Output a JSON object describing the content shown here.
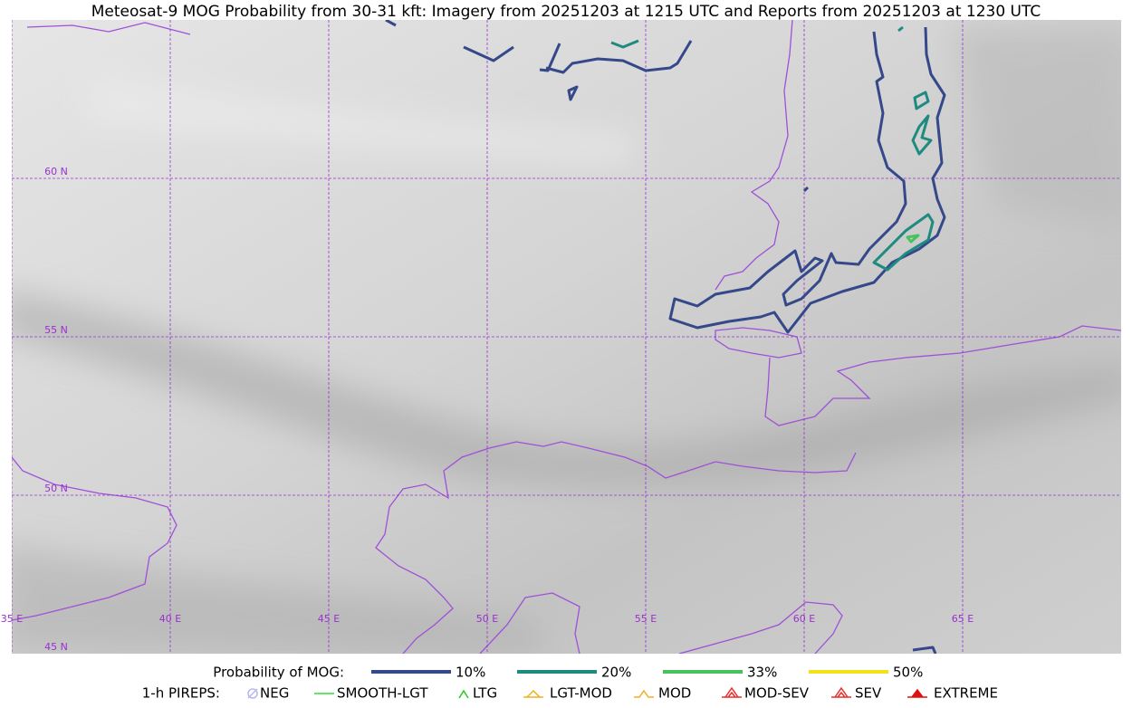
{
  "title": "Meteosat-9 MOG Probability from 30-31 kft: Imagery from 20251203 at 1215 UTC and Reports from 20251203 at 1230 UTC",
  "map": {
    "lon_labels": [
      "35 E",
      "40 E",
      "45 E",
      "50 E",
      "55 E",
      "60 E",
      "65 E"
    ],
    "lat_labels": [
      "60 N",
      "55 N",
      "50 N",
      "45 N"
    ]
  },
  "legend": {
    "probability": {
      "label": "Probability of MOG:",
      "items": [
        {
          "label": "10%",
          "color": "#34488a"
        },
        {
          "label": "20%",
          "color": "#1f8a80"
        },
        {
          "label": "33%",
          "color": "#46c35a"
        },
        {
          "label": "50%",
          "color": "#f5e11a"
        }
      ]
    },
    "pireps": {
      "label": "1-h PIREPS:",
      "items": [
        {
          "label": "NEG",
          "color": "#b8b8f0"
        },
        {
          "label": "SMOOTH-LGT",
          "color": "#33dd33"
        },
        {
          "label": "LTG",
          "color": "#22cc22"
        },
        {
          "label": "LGT-MOD",
          "color": "#f0b020"
        },
        {
          "label": "MOD",
          "color": "#f0b020"
        },
        {
          "label": "MOD-SEV",
          "color": "#e83030"
        },
        {
          "label": "SEV",
          "color": "#e83030"
        },
        {
          "label": "EXTREME",
          "color": "#e01010"
        }
      ]
    }
  }
}
